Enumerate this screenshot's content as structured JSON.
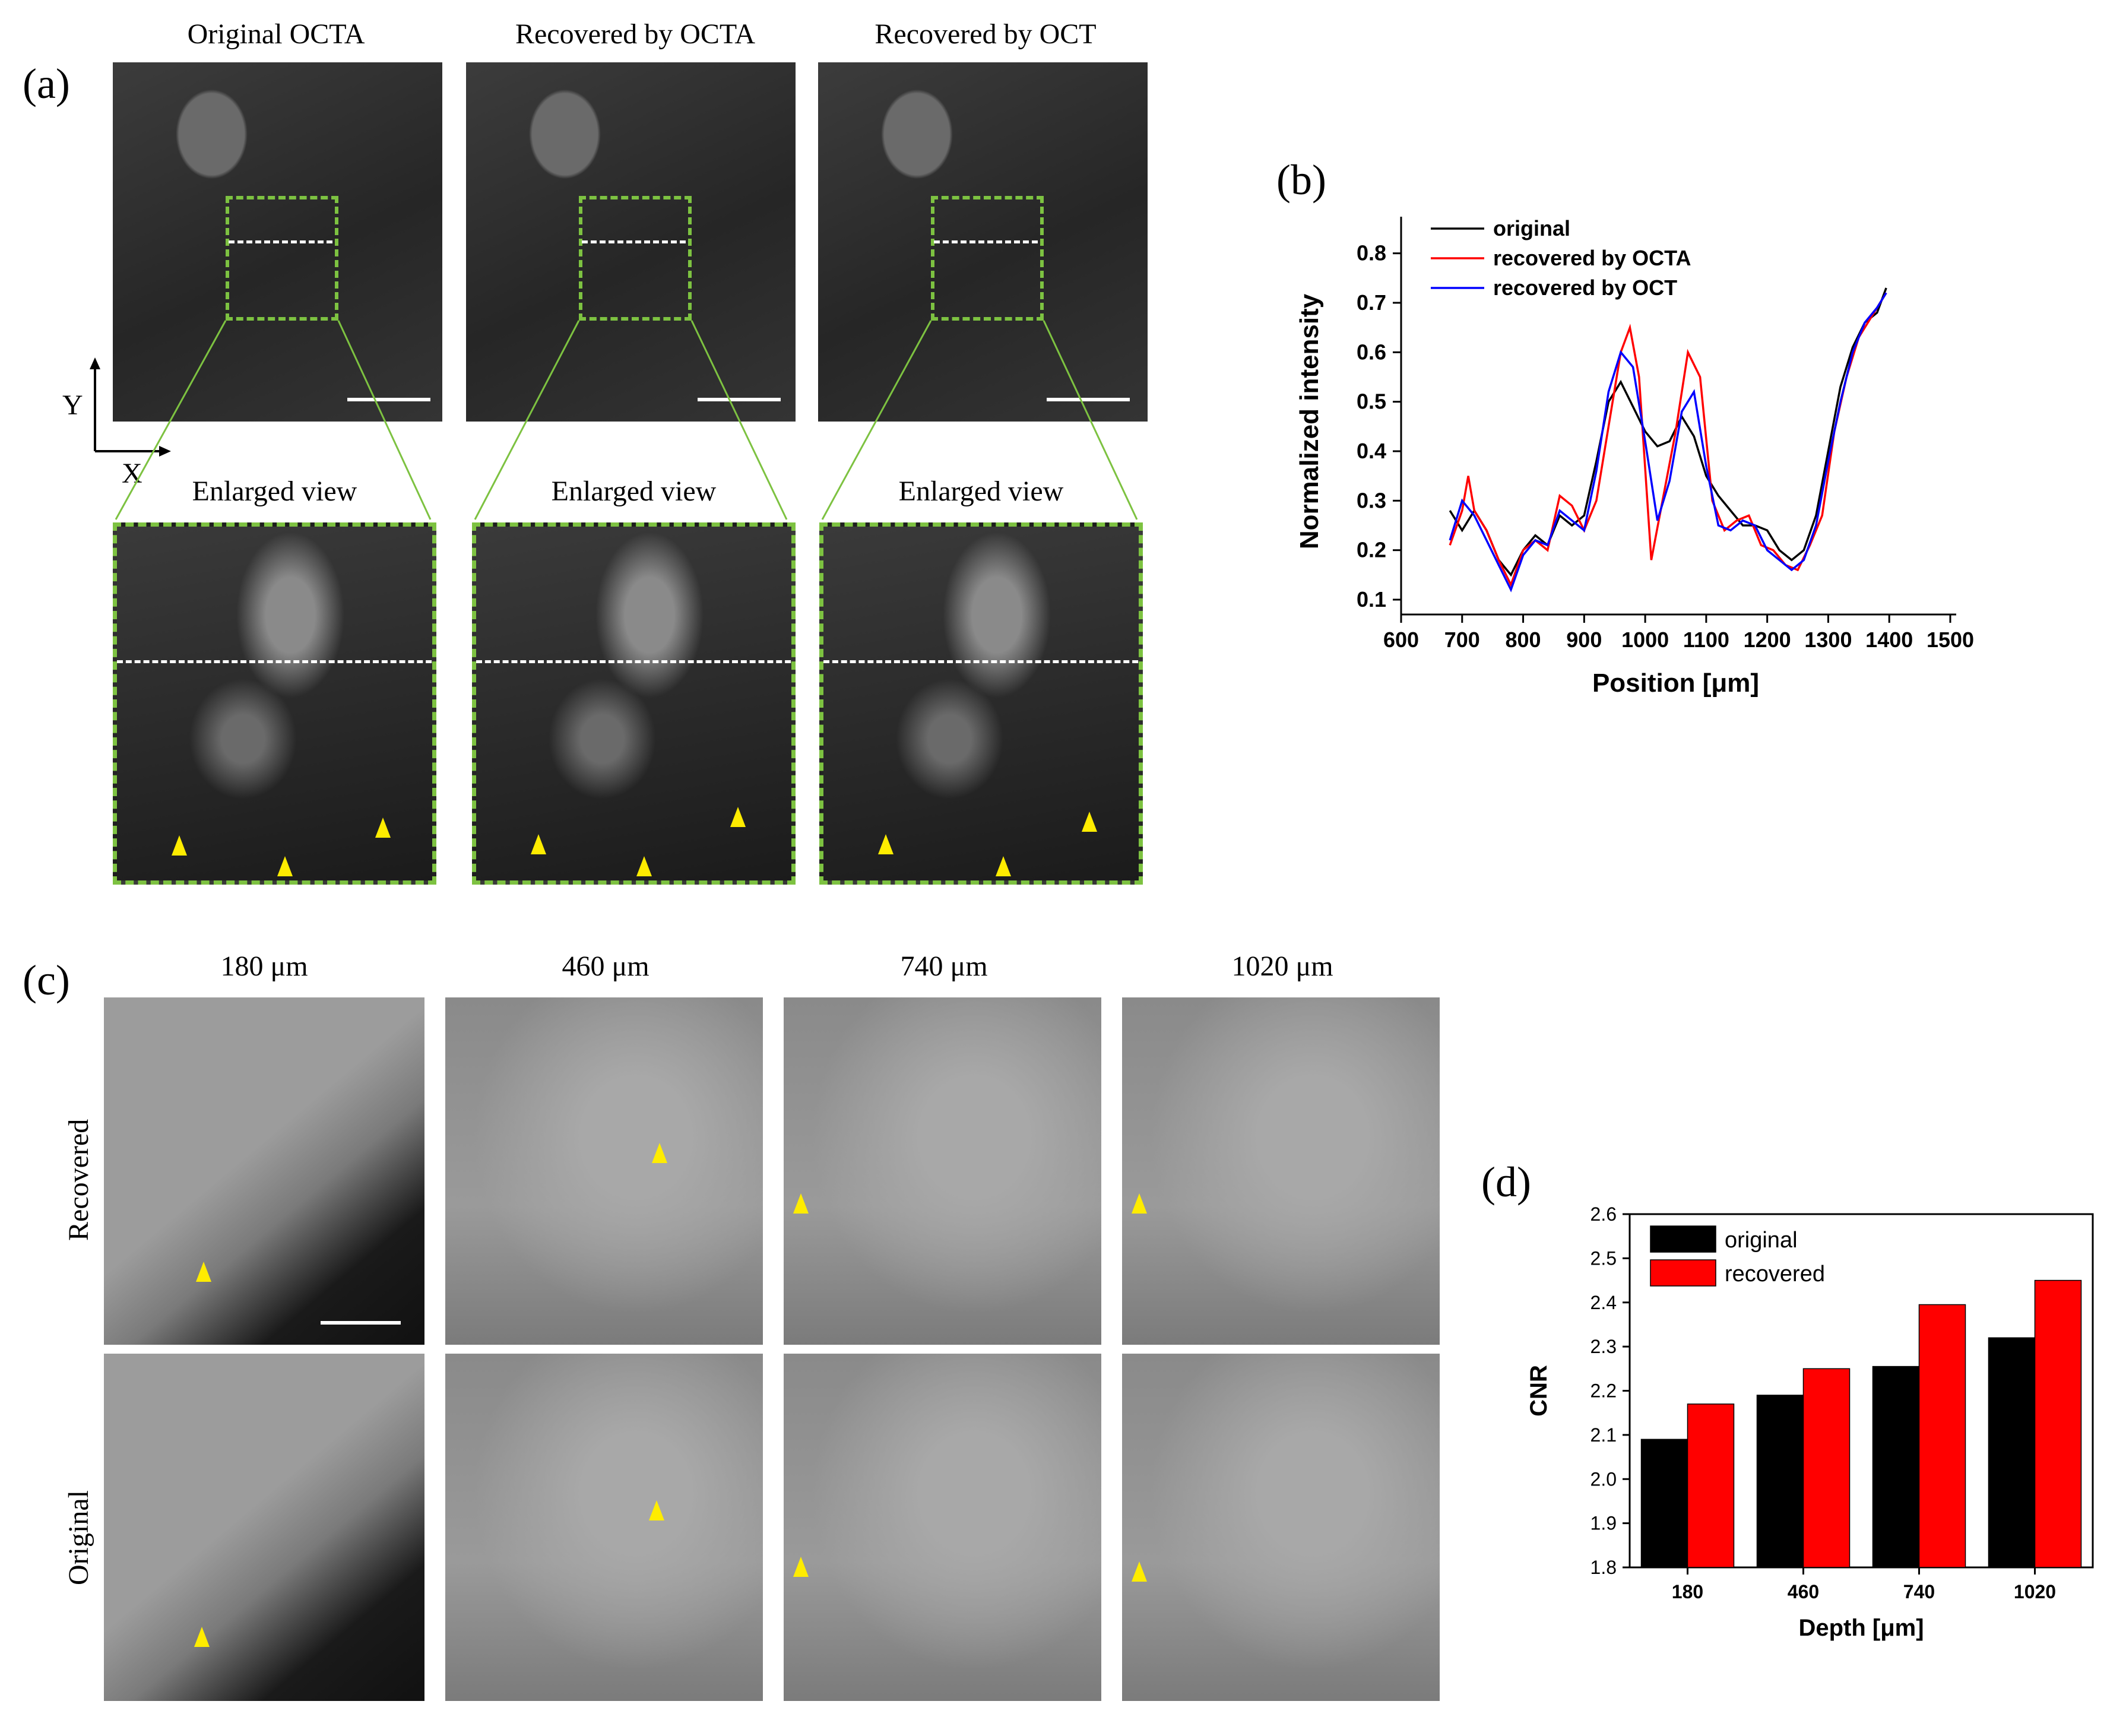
{
  "panel_a": {
    "letter": "(a)",
    "columns": [
      "Original OCTA",
      "Recovered by OCTA",
      "Recovered by OCT"
    ],
    "enlarged_label": "Enlarged view",
    "axis_y": "Y",
    "axis_x": "X"
  },
  "panel_b": {
    "letter": "(b)",
    "chart_data": {
      "type": "line",
      "xlabel": "Position [μm]",
      "ylabel": "Normalized intensity",
      "xlim": [
        600,
        1500
      ],
      "ylim": [
        0.07,
        0.85
      ],
      "xticks": [
        600,
        700,
        800,
        900,
        1000,
        1100,
        1200,
        1300,
        1400,
        1500
      ],
      "yticks": [
        0.1,
        0.2,
        0.3,
        0.4,
        0.5,
        0.6,
        0.7,
        0.8
      ],
      "legend_position": "top-left",
      "series": [
        {
          "name": "original",
          "color": "#000000",
          "x": [
            680,
            700,
            720,
            740,
            760,
            780,
            800,
            820,
            840,
            860,
            880,
            900,
            920,
            940,
            960,
            980,
            1000,
            1020,
            1040,
            1060,
            1080,
            1100,
            1120,
            1140,
            1160,
            1180,
            1200,
            1220,
            1240,
            1260,
            1280,
            1300,
            1320,
            1340,
            1360,
            1380,
            1395
          ],
          "y": [
            0.28,
            0.24,
            0.28,
            0.24,
            0.18,
            0.15,
            0.2,
            0.23,
            0.21,
            0.27,
            0.25,
            0.27,
            0.38,
            0.5,
            0.54,
            0.49,
            0.44,
            0.41,
            0.42,
            0.47,
            0.43,
            0.35,
            0.31,
            0.28,
            0.25,
            0.25,
            0.24,
            0.2,
            0.18,
            0.2,
            0.27,
            0.4,
            0.53,
            0.61,
            0.66,
            0.68,
            0.73
          ]
        },
        {
          "name": "recovered by OCTA",
          "color": "#ff0000",
          "x": [
            680,
            700,
            710,
            720,
            740,
            760,
            780,
            800,
            820,
            840,
            860,
            880,
            900,
            920,
            940,
            960,
            975,
            990,
            1010,
            1030,
            1050,
            1070,
            1090,
            1110,
            1130,
            1150,
            1170,
            1190,
            1210,
            1230,
            1250,
            1270,
            1290,
            1310,
            1330,
            1350,
            1370,
            1395
          ],
          "y": [
            0.21,
            0.28,
            0.35,
            0.28,
            0.24,
            0.18,
            0.13,
            0.2,
            0.22,
            0.2,
            0.31,
            0.29,
            0.24,
            0.3,
            0.45,
            0.6,
            0.65,
            0.55,
            0.18,
            0.31,
            0.44,
            0.6,
            0.55,
            0.3,
            0.24,
            0.26,
            0.27,
            0.21,
            0.2,
            0.17,
            0.16,
            0.21,
            0.27,
            0.44,
            0.55,
            0.63,
            0.67,
            0.72
          ]
        },
        {
          "name": "recovered by OCT",
          "color": "#0000ff",
          "x": [
            680,
            700,
            720,
            740,
            760,
            780,
            800,
            820,
            840,
            860,
            880,
            900,
            920,
            940,
            960,
            980,
            1000,
            1020,
            1040,
            1060,
            1080,
            1100,
            1120,
            1140,
            1160,
            1180,
            1200,
            1220,
            1240,
            1260,
            1280,
            1300,
            1320,
            1340,
            1360,
            1380,
            1395
          ],
          "y": [
            0.22,
            0.3,
            0.27,
            0.22,
            0.17,
            0.12,
            0.19,
            0.22,
            0.21,
            0.28,
            0.26,
            0.24,
            0.36,
            0.52,
            0.6,
            0.57,
            0.42,
            0.26,
            0.34,
            0.48,
            0.52,
            0.37,
            0.25,
            0.24,
            0.26,
            0.25,
            0.2,
            0.18,
            0.16,
            0.18,
            0.25,
            0.38,
            0.5,
            0.6,
            0.66,
            0.69,
            0.72
          ]
        }
      ]
    }
  },
  "panel_c": {
    "letter": "(c)",
    "depths": [
      "180 μm",
      "460 μm",
      "740 μm",
      "1020 μm"
    ],
    "rows": [
      "Recovered",
      "Original"
    ]
  },
  "panel_d": {
    "letter": "(d)",
    "chart_data": {
      "type": "bar",
      "categories": [
        "180",
        "460",
        "740",
        "1020"
      ],
      "series": [
        {
          "name": "original",
          "color": "#000000",
          "values": [
            2.09,
            2.19,
            2.255,
            2.32
          ]
        },
        {
          "name": "recovered",
          "color": "#ff0000",
          "values": [
            2.17,
            2.25,
            2.395,
            2.45
          ]
        }
      ],
      "xlabel": "Depth [μm]",
      "ylabel": "CNR",
      "ylim": [
        1.8,
        2.6
      ],
      "yticks": [
        1.8,
        1.9,
        2.0,
        2.1,
        2.2,
        2.3,
        2.4,
        2.5,
        2.6
      ],
      "legend_position": "top-left"
    }
  }
}
